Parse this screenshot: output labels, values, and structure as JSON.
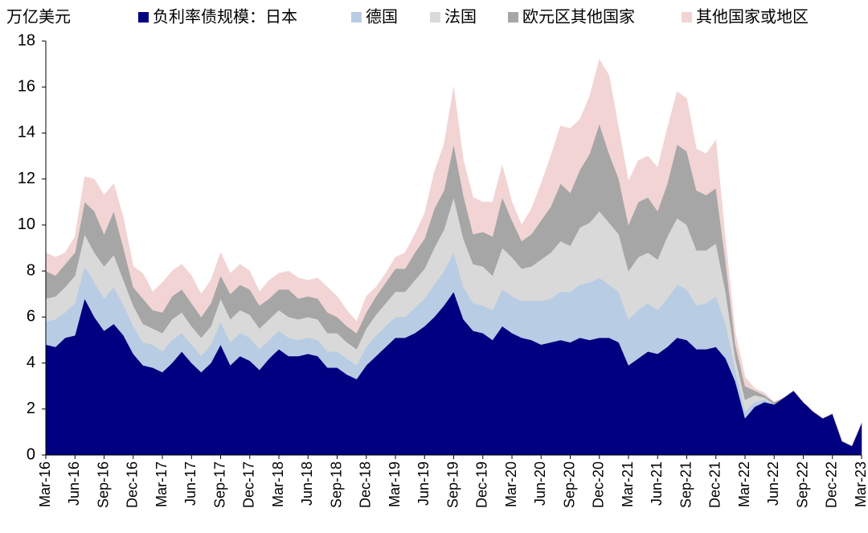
{
  "chart_data": {
    "type": "stacked_area",
    "y_label": "万亿美元",
    "categories": [
      "Mar-16",
      null,
      null,
      "Jun-16",
      null,
      null,
      "Sep-16",
      null,
      null,
      "Dec-16",
      null,
      null,
      "Mar-17",
      null,
      null,
      "Jun-17",
      null,
      null,
      "Sep-17",
      null,
      null,
      "Dec-17",
      null,
      null,
      "Mar-18",
      null,
      null,
      "Jun-18",
      null,
      null,
      "Sep-18",
      null,
      null,
      "Dec-18",
      null,
      null,
      "Mar-19",
      null,
      null,
      "Jun-19",
      null,
      null,
      "Sep-19",
      null,
      null,
      "Dec-19",
      null,
      null,
      "Mar-20",
      null,
      null,
      "Jun-20",
      null,
      null,
      "Sep-20",
      null,
      null,
      "Dec-20",
      null,
      null,
      "Mar-21",
      null,
      null,
      "Jun-21",
      null,
      null,
      "Sep-21",
      null,
      null,
      "Dec-21",
      null,
      null,
      "Mar-22",
      null,
      null,
      "Jun-22",
      null,
      null,
      "Sep-22",
      null,
      null,
      "Dec-22",
      null,
      null,
      "Mar-23"
    ],
    "series": [
      {
        "name": "负利率债规模：日本",
        "color": "#000080",
        "values": [
          4.8,
          4.7,
          5.1,
          5.2,
          6.8,
          6.0,
          5.4,
          5.7,
          5.2,
          4.4,
          3.9,
          3.8,
          3.6,
          4.0,
          4.5,
          4.0,
          3.6,
          4.0,
          4.8,
          3.9,
          4.3,
          4.1,
          3.7,
          4.2,
          4.6,
          4.3,
          4.3,
          4.4,
          4.3,
          3.8,
          3.8,
          3.5,
          3.3,
          3.9,
          4.3,
          4.7,
          5.1,
          5.1,
          5.3,
          5.6,
          6.0,
          6.5,
          7.1,
          5.9,
          5.4,
          5.3,
          5.0,
          5.6,
          5.3,
          5.1,
          5.0,
          4.8,
          4.9,
          5.0,
          4.9,
          5.1,
          5.0,
          5.1,
          5.1,
          4.9,
          3.9,
          4.2,
          4.5,
          4.4,
          4.7,
          5.1,
          5.0,
          4.6,
          4.6,
          4.7,
          4.2,
          3.2,
          1.6,
          2.1,
          2.3,
          2.2,
          2.5,
          2.8,
          2.3,
          1.9,
          1.6,
          1.8,
          0.6,
          0.4,
          1.4
        ]
      },
      {
        "name": "德国",
        "color": "#b8cce4",
        "values": [
          1.0,
          1.2,
          1.1,
          1.4,
          1.4,
          1.5,
          1.4,
          1.6,
          1.3,
          1.2,
          1.0,
          1.0,
          0.9,
          1.0,
          0.8,
          0.8,
          0.7,
          0.8,
          1.0,
          1.0,
          1.0,
          1.0,
          0.9,
          0.8,
          0.8,
          0.8,
          0.7,
          0.7,
          0.7,
          0.7,
          0.7,
          0.7,
          0.6,
          0.8,
          0.9,
          0.9,
          0.9,
          0.9,
          1.1,
          1.2,
          1.4,
          1.5,
          1.7,
          1.4,
          1.2,
          1.2,
          1.3,
          1.6,
          1.6,
          1.6,
          1.7,
          1.9,
          1.9,
          2.1,
          2.2,
          2.3,
          2.5,
          2.6,
          2.3,
          2.2,
          2.0,
          2.1,
          2.1,
          1.9,
          2.1,
          2.3,
          2.2,
          1.9,
          2.0,
          2.2,
          1.5,
          0.5,
          0.3,
          0.2,
          0.1,
          0,
          0,
          0,
          0,
          0,
          0,
          0,
          0,
          0,
          0
        ]
      },
      {
        "name": "法国",
        "color": "#d9d9d9",
        "values": [
          1.0,
          1.0,
          1.1,
          1.2,
          1.4,
          1.3,
          1.4,
          1.4,
          1.1,
          0.9,
          0.8,
          0.7,
          0.8,
          0.9,
          0.9,
          0.8,
          0.8,
          0.8,
          1.0,
          1.0,
          1.0,
          1.0,
          0.9,
          0.9,
          0.9,
          0.9,
          0.9,
          0.9,
          0.9,
          0.8,
          0.8,
          0.7,
          0.7,
          0.8,
          0.9,
          1.0,
          1.1,
          1.1,
          1.2,
          1.3,
          1.6,
          1.8,
          2.4,
          2.1,
          1.7,
          1.7,
          1.5,
          1.8,
          1.7,
          1.4,
          1.5,
          1.8,
          2.0,
          2.2,
          2.0,
          2.5,
          2.6,
          2.9,
          2.7,
          2.5,
          2.1,
          2.3,
          2.2,
          2.2,
          2.7,
          2.9,
          2.8,
          2.4,
          2.3,
          2.3,
          1.4,
          0.5,
          0.5,
          0.3,
          0.1,
          0,
          0,
          0,
          0,
          0,
          0,
          0,
          0,
          0,
          0
        ]
      },
      {
        "name": "欧元区其他国家",
        "color": "#a6a6a6",
        "values": [
          1.2,
          0.9,
          1.0,
          1.0,
          1.4,
          1.8,
          1.4,
          1.9,
          1.4,
          0.8,
          1.1,
          0.8,
          0.9,
          1.0,
          1.0,
          1.0,
          0.9,
          1.0,
          1.0,
          1.1,
          1.1,
          1.1,
          1.0,
          0.9,
          0.9,
          1.2,
          0.9,
          0.9,
          0.9,
          0.9,
          0.7,
          0.7,
          0.7,
          0.7,
          0.8,
          0.9,
          1.0,
          1.0,
          1.2,
          1.3,
          1.7,
          1.7,
          2.3,
          1.9,
          1.3,
          1.5,
          1.7,
          2.2,
          1.6,
          1.2,
          1.4,
          1.7,
          2.0,
          2.5,
          2.3,
          2.5,
          3.0,
          3.8,
          3.0,
          2.4,
          2.0,
          2.4,
          2.4,
          2.1,
          2.3,
          3.2,
          3.2,
          2.6,
          2.4,
          2.4,
          1.3,
          0.6,
          0.6,
          0.2,
          0.1,
          0.1,
          0,
          0,
          0,
          0,
          0,
          0,
          0,
          0,
          0
        ]
      },
      {
        "name": "其他国家或地区",
        "color": "#f2d4d4",
        "values": [
          0.8,
          0.8,
          0.5,
          0.7,
          1.1,
          1.4,
          1.7,
          1.2,
          1.3,
          0.9,
          1.1,
          0.8,
          1.3,
          1.1,
          1.1,
          1.2,
          1.0,
          1.0,
          1.0,
          0.9,
          0.9,
          0.8,
          0.6,
          0.8,
          0.7,
          0.8,
          0.9,
          0.7,
          0.9,
          1.1,
          0.9,
          0.7,
          0.5,
          0.7,
          0.4,
          0.4,
          0.5,
          0.7,
          0.8,
          1.1,
          1.6,
          2.0,
          2.5,
          1.5,
          1.6,
          1.3,
          1.5,
          1.4,
          0.8,
          0.7,
          1.1,
          1.6,
          2.2,
          2.5,
          2.8,
          2.2,
          2.5,
          2.8,
          3.4,
          2.2,
          1.9,
          1.8,
          1.8,
          1.9,
          2.4,
          2.3,
          2.3,
          1.8,
          1.8,
          2.1,
          0.9,
          0.5,
          0.4,
          0.1,
          0.1,
          0,
          0,
          0,
          0,
          0,
          0,
          0,
          0,
          0,
          0
        ]
      }
    ],
    "ylim": [
      0,
      18
    ],
    "yticks": [
      0,
      2,
      4,
      6,
      8,
      10,
      12,
      14,
      16,
      18
    ],
    "grid": false
  }
}
